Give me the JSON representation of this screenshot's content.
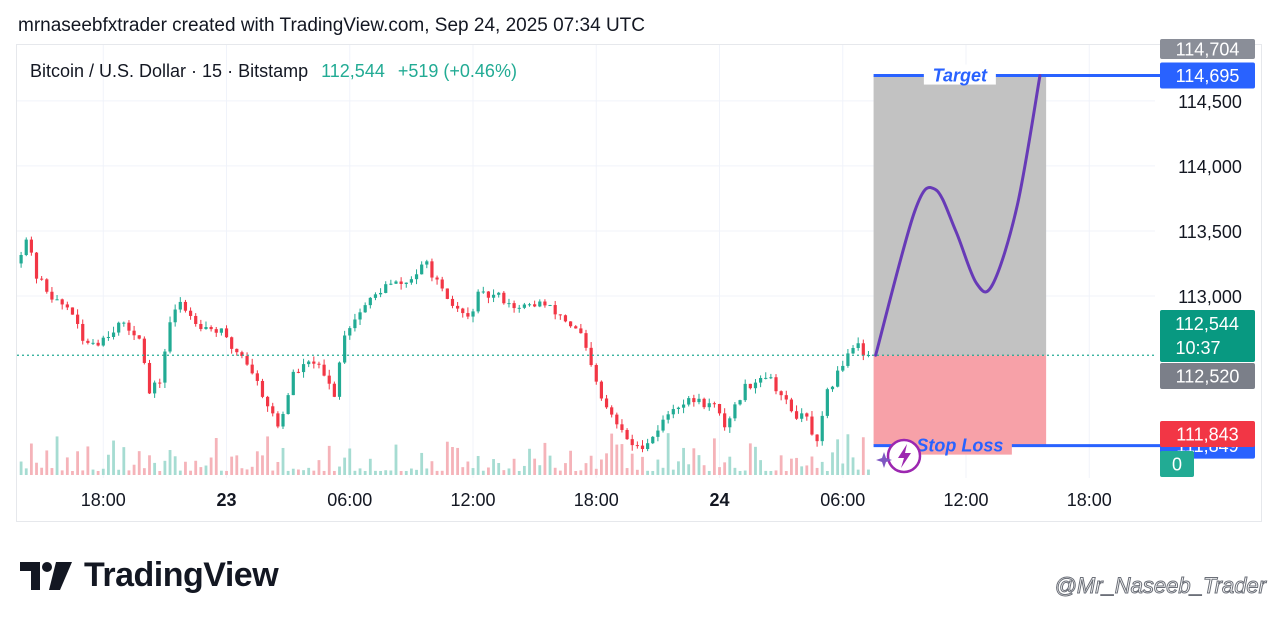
{
  "header": {
    "attribution": "mrnaseebfxtrader created with TradingView.com, Sep 24, 2025 07:34 UTC",
    "symbol": "Bitcoin / U.S. Dollar · 15 · Bitstamp",
    "last_price": "112,544",
    "change": "+519 (+0.46%)"
  },
  "annotations": {
    "target_label": "Target",
    "stop_label": "Stop Loss"
  },
  "price_tags": {
    "top_partial": "114,704",
    "target": "114,695",
    "last": "112,544",
    "countdown": "10:37",
    "grey": "112,520",
    "stop": "111,849",
    "red": "111,843",
    "volume": "0"
  },
  "footer": {
    "brand": "TradingView",
    "watermark": "@Mr_Naseeb_Trader"
  },
  "colors": {
    "up": "#22ab94",
    "down": "#f23645",
    "target_line": "#2962ff",
    "profit_zone": "#c2c2c2",
    "loss_zone": "#f7a1a8",
    "path": "#673ab7"
  },
  "chart_data": {
    "type": "candlestick",
    "y_axis_ticks": [
      114500,
      114000,
      113500,
      113000
    ],
    "y_axis_tick_labels": [
      "114,500",
      "114,000",
      "113,500",
      "113,000"
    ],
    "x_axis_labels": [
      "18:00",
      "23",
      "06:00",
      "12:00",
      "18:00",
      "24",
      "06:00",
      "12:00",
      "18:00"
    ],
    "x_axis_hours": [
      -6,
      0,
      6,
      12,
      18,
      24,
      30,
      36,
      42
    ],
    "x_axis_bold": [
      false,
      true,
      false,
      false,
      false,
      true,
      false,
      false,
      false
    ],
    "x_range_hours": [
      -10.2,
      45.2
    ],
    "y_range": [
      111600,
      114930
    ],
    "candle_interval_minutes": 15,
    "last_price": 112544,
    "target_price": 114695,
    "stop_price": 111849,
    "trade_zone_hours": [
      31.5,
      39.9
    ],
    "projected_path": [
      [
        31.6,
        112544
      ],
      [
        33.5,
        113650
      ],
      [
        34.5,
        113820
      ],
      [
        35.5,
        113500
      ],
      [
        36.5,
        113100
      ],
      [
        37.3,
        113090
      ],
      [
        38.5,
        113700
      ],
      [
        39.6,
        114695
      ]
    ],
    "price_anchors": [
      [
        -10.0,
        113250
      ],
      [
        -9.5,
        113450
      ],
      [
        -9.0,
        113150
      ],
      [
        -8.0,
        112950
      ],
      [
        -7.3,
        112900
      ],
      [
        -6.8,
        112650
      ],
      [
        -6.0,
        112650
      ],
      [
        -5.0,
        112780
      ],
      [
        -4.0,
        112700
      ],
      [
        -3.5,
        112250
      ],
      [
        -3.0,
        112350
      ],
      [
        -2.5,
        112800
      ],
      [
        -2.0,
        112950
      ],
      [
        -1.5,
        112850
      ],
      [
        -1.0,
        112780
      ],
      [
        0.0,
        112720
      ],
      [
        0.5,
        112600
      ],
      [
        1.0,
        112550
      ],
      [
        1.5,
        112420
      ],
      [
        2.0,
        112250
      ],
      [
        2.8,
        111980
      ],
      [
        3.5,
        112400
      ],
      [
        4.5,
        112500
      ],
      [
        5.5,
        112250
      ],
      [
        6.0,
        112720
      ],
      [
        7.0,
        112930
      ],
      [
        8.0,
        113080
      ],
      [
        9.0,
        113100
      ],
      [
        10.0,
        113250
      ],
      [
        10.5,
        113100
      ],
      [
        11.0,
        112950
      ],
      [
        11.5,
        112900
      ],
      [
        12.0,
        112820
      ],
      [
        12.5,
        113000
      ],
      [
        13.5,
        113000
      ],
      [
        14.5,
        112900
      ],
      [
        15.5,
        112950
      ],
      [
        16.5,
        112850
      ],
      [
        17.5,
        112700
      ],
      [
        18.0,
        112450
      ],
      [
        18.5,
        112200
      ],
      [
        19.5,
        111950
      ],
      [
        20.2,
        111820
      ],
      [
        21.0,
        111920
      ],
      [
        22.0,
        112150
      ],
      [
        23.0,
        112200
      ],
      [
        24.0,
        112150
      ],
      [
        24.5,
        112000
      ],
      [
        25.5,
        112300
      ],
      [
        26.5,
        112400
      ],
      [
        27.0,
        112300
      ],
      [
        27.8,
        112100
      ],
      [
        28.5,
        112050
      ],
      [
        29.0,
        111850
      ],
      [
        29.5,
        112250
      ],
      [
        30.0,
        112400
      ],
      [
        30.6,
        112600
      ],
      [
        31.0,
        112650
      ],
      [
        31.3,
        112544
      ]
    ],
    "volume_bars": 180
  }
}
